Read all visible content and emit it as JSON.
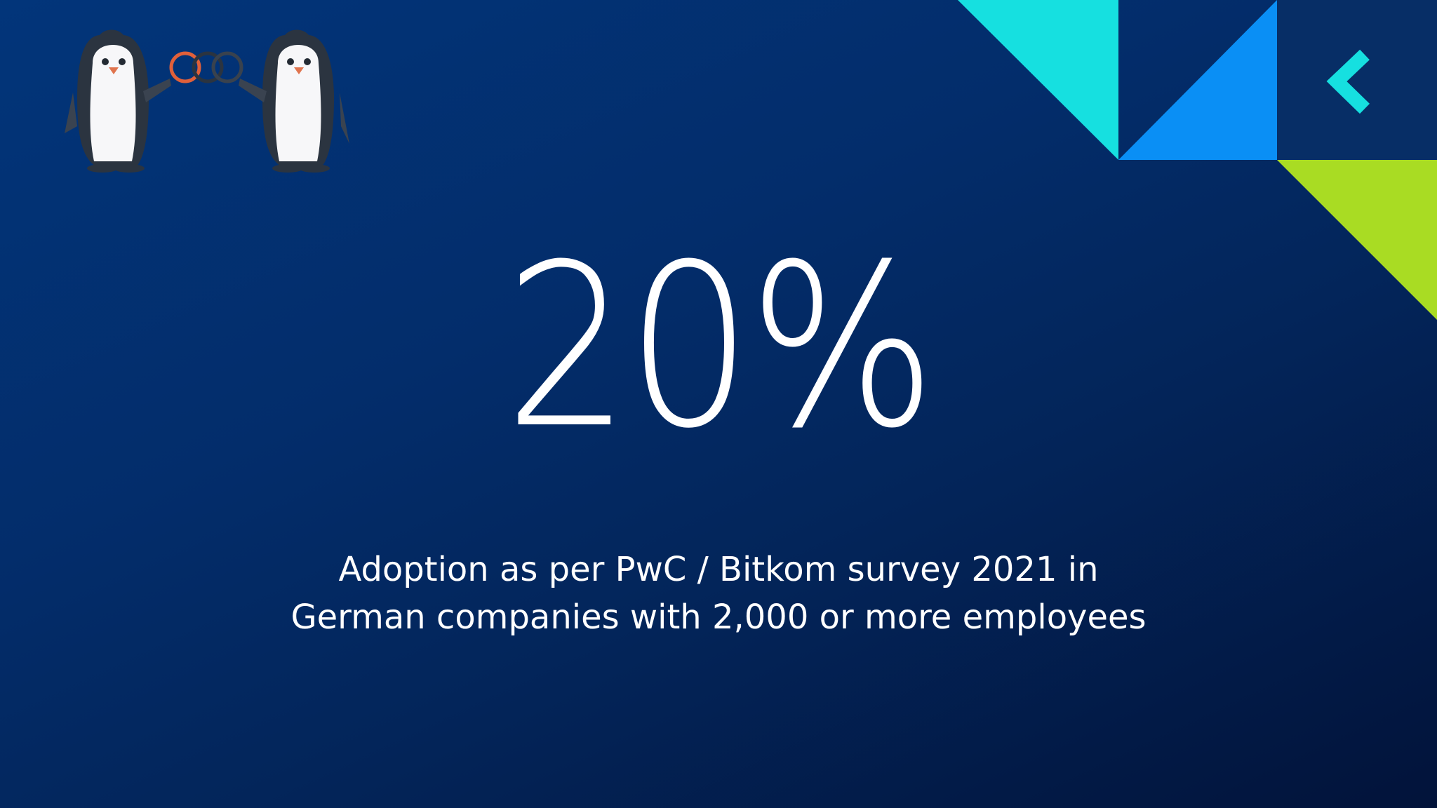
{
  "slide": {
    "stat": "20%",
    "caption_lines": [
      "Adoption as per PwC / Bitkom survey 2021 in",
      "German companies with 2,000 or more employees"
    ]
  },
  "decoration": {
    "logo": "penguins-holding-rings-illustration",
    "corner_icon": "chevron-left-icon",
    "colors": {
      "cyan": "#16e0e0",
      "blue": "#0a8ff5",
      "dark_navy": "#072e66",
      "lime": "#a9dc23",
      "background_start": "#02357a",
      "background_end": "#02133a"
    }
  }
}
